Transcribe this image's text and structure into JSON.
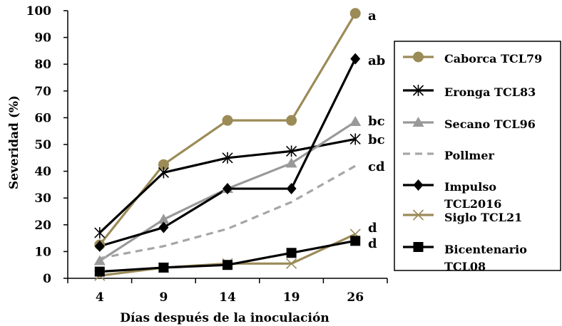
{
  "chart_data": {
    "type": "line",
    "x": [
      4,
      9,
      14,
      19,
      26
    ],
    "xlabel": "Días después de la inoculación",
    "ylabel": "Severidad (%)",
    "ylim": [
      0,
      100
    ],
    "yticks": [
      0,
      10,
      20,
      30,
      40,
      50,
      60,
      70,
      80,
      90,
      100
    ],
    "grid": false,
    "legend_position": "right",
    "series": [
      {
        "name": "Caborca TCL79",
        "values": [
          12.5,
          42.5,
          59,
          59,
          99
        ],
        "color": "#9b8b57",
        "marker": "circle",
        "dash": "solid"
      },
      {
        "name": "Eronga  TCL83",
        "values": [
          17,
          39.5,
          45,
          47.5,
          52
        ],
        "color": "#000000",
        "marker": "asterisk",
        "dash": "solid"
      },
      {
        "name": "Secano TCL96",
        "values": [
          6.5,
          22,
          33.5,
          43,
          58.5
        ],
        "color": "#999999",
        "marker": "triangle",
        "dash": "solid"
      },
      {
        "name": "Pollmer",
        "values": [
          7.5,
          12,
          18.5,
          28.5,
          42
        ],
        "color": "#a6a6a6",
        "marker": "none",
        "dash": "dashed"
      },
      {
        "name": "Impulso TCL2016",
        "values": [
          12,
          19,
          33.5,
          33.5,
          82
        ],
        "color": "#000000",
        "marker": "diamond",
        "dash": "solid"
      },
      {
        "name": "Siglo TCL21",
        "values": [
          1,
          4,
          5.5,
          5.5,
          16.5
        ],
        "color": "#9b8b57",
        "marker": "x",
        "dash": "solid"
      },
      {
        "name": "Bicentenario TCL08",
        "values": [
          2.5,
          4,
          5,
          9.5,
          14
        ],
        "color": "#000000",
        "marker": "square",
        "dash": "solid"
      }
    ],
    "annotations": [
      "a",
      "ab",
      "bc",
      "bc",
      "cd",
      "d",
      "d"
    ]
  }
}
